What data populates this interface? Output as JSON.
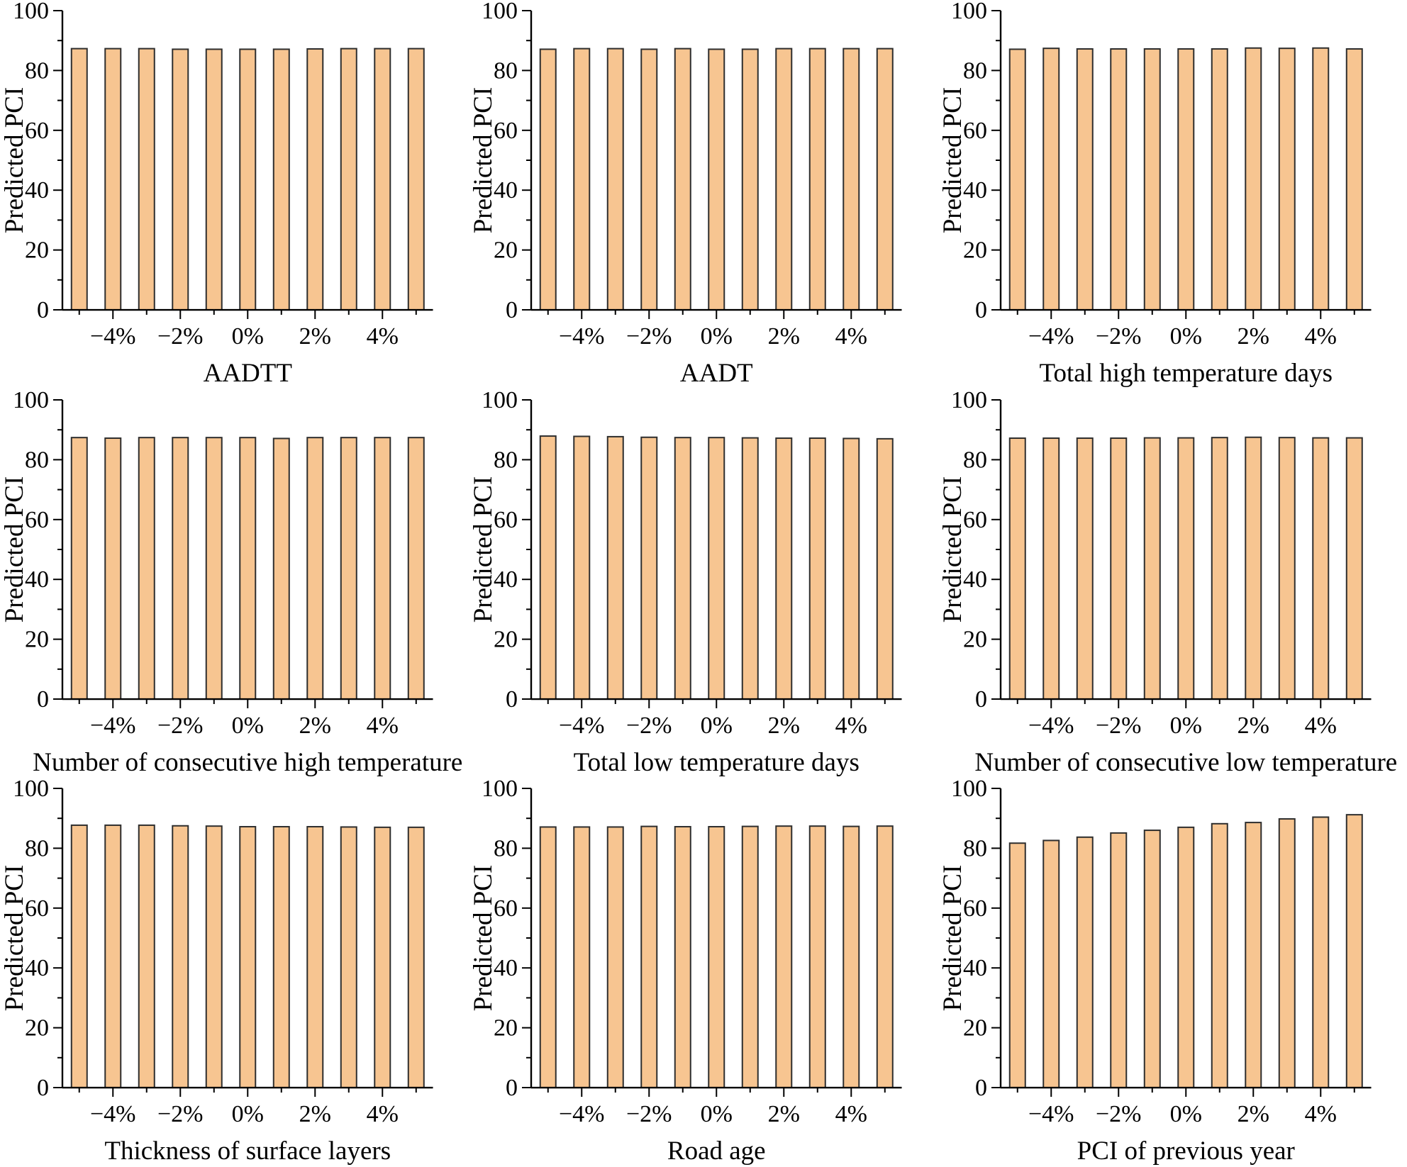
{
  "page": {
    "background": "#ffffff"
  },
  "style": {
    "bar_fill": "#F7C591",
    "bar_stroke": "#2E2E2E",
    "axis_color": "#000000",
    "text_color": "#000000"
  },
  "chart_data": {
    "type": "bar",
    "grid": "off",
    "legend": "none",
    "ylabel": "Predicted PCI",
    "ylim": [
      0,
      100
    ],
    "y_ticks": [
      0,
      20,
      40,
      60,
      80,
      100
    ],
    "y_minor_step": 10,
    "n_bars": 11,
    "x_tick_labels": [
      "−4%",
      "−2%",
      "0%",
      "2%",
      "4%"
    ],
    "x_tick_label_positions": [
      1,
      3,
      5,
      7,
      9
    ],
    "charts": [
      {
        "title": "AADTT",
        "values": [
          87.3,
          87.3,
          87.3,
          87.1,
          87.1,
          87.1,
          87.1,
          87.2,
          87.3,
          87.3,
          87.3
        ]
      },
      {
        "title": "AADT",
        "values": [
          87.1,
          87.3,
          87.3,
          87.1,
          87.3,
          87.1,
          87.1,
          87.3,
          87.3,
          87.3,
          87.3
        ]
      },
      {
        "title": "Total high temperature days",
        "values": [
          87.1,
          87.4,
          87.2,
          87.2,
          87.2,
          87.2,
          87.2,
          87.5,
          87.4,
          87.5,
          87.2
        ]
      },
      {
        "title": "Number of consecutive high temperature",
        "values": [
          87.4,
          87.2,
          87.4,
          87.4,
          87.4,
          87.4,
          87.1,
          87.4,
          87.4,
          87.4,
          87.4
        ]
      },
      {
        "title": "Total low temperature days",
        "values": [
          87.9,
          87.8,
          87.7,
          87.5,
          87.4,
          87.4,
          87.3,
          87.2,
          87.2,
          87.1,
          87.0
        ]
      },
      {
        "title": "Number of consecutive low temperature",
        "values": [
          87.2,
          87.2,
          87.2,
          87.2,
          87.3,
          87.3,
          87.4,
          87.5,
          87.4,
          87.3,
          87.3
        ]
      },
      {
        "title": "Thickness of surface layers",
        "values": [
          87.7,
          87.7,
          87.7,
          87.5,
          87.4,
          87.2,
          87.2,
          87.2,
          87.1,
          87.0,
          87.0
        ]
      },
      {
        "title": "Road age",
        "values": [
          87.1,
          87.1,
          87.1,
          87.3,
          87.2,
          87.2,
          87.3,
          87.4,
          87.4,
          87.3,
          87.4
        ]
      },
      {
        "title": "PCI of previous year",
        "values": [
          81.7,
          82.6,
          83.7,
          85.1,
          86.0,
          87.0,
          88.2,
          88.6,
          89.8,
          90.4,
          91.2
        ]
      }
    ]
  }
}
